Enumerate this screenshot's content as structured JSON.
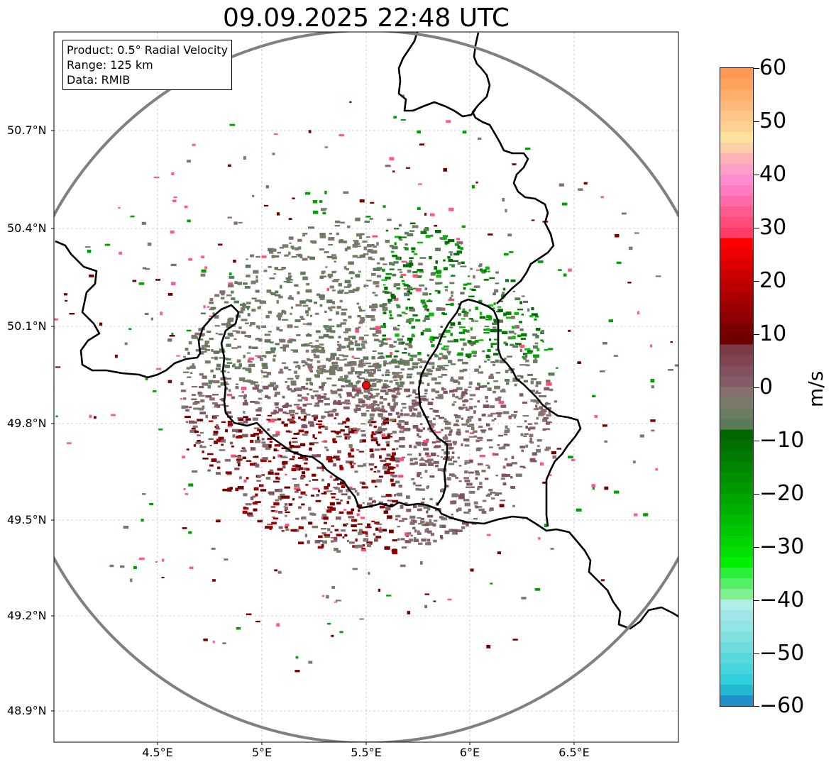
{
  "title": "09.09.2025 22:48 UTC",
  "infobox": {
    "product": "Product: 0.5° Radial Velocity",
    "range": "Range: 125 km",
    "source": "Data: RMIB"
  },
  "map": {
    "y_ticks": [
      "50.7°N",
      "50.4°N",
      "50.1°N",
      "49.8°N",
      "49.5°N",
      "49.2°N",
      "48.9°N"
    ],
    "x_ticks": [
      "4.5°E",
      "5°E",
      "5.5°E",
      "6°E",
      "6.5°E"
    ],
    "radar_site": "red-dot",
    "range_ring": "grey"
  },
  "colorbar": {
    "unit": "m/s",
    "ticks": [
      "60",
      "50",
      "40",
      "30",
      "20",
      "10",
      "0",
      "−10",
      "−20",
      "−30",
      "−40",
      "−50",
      "−60"
    ],
    "min": -60,
    "max": 60,
    "colors": [
      "#ff9a55",
      "#ffa35f",
      "#ffae6c",
      "#ffba7a",
      "#ffc688",
      "#ffd294",
      "#ffe39a",
      "#ffd0a8",
      "#ffb3b8",
      "#ff9ec8",
      "#ff8cd0",
      "#ff7cc0",
      "#ff6aa8",
      "#ff5a90",
      "#ff4c7a",
      "#ff3d66",
      "#ff0000",
      "#ec0000",
      "#dc0000",
      "#cb0000",
      "#bb0000",
      "#ab0000",
      "#9b0000",
      "#8b0000",
      "#7a0000",
      "#6e0000",
      "#7d3a44",
      "#824452",
      "#835060",
      "#845c68",
      "#867070",
      "#7c7a6a",
      "#6c7c62",
      "#5b7a5a",
      "#006600",
      "#007000",
      "#007a00",
      "#008500",
      "#008f00",
      "#009a00",
      "#00a500",
      "#00b000",
      "#00bc00",
      "#00c800",
      "#00d400",
      "#00e000",
      "#00ee00",
      "#2af03a",
      "#55f065",
      "#80f090",
      "#b0eee8",
      "#a0e8e8",
      "#90e4e4",
      "#80e0e0",
      "#6cdcdc",
      "#58d8dc",
      "#44d6dc",
      "#30d0dc",
      "#24b8d0",
      "#2090c8"
    ]
  }
}
